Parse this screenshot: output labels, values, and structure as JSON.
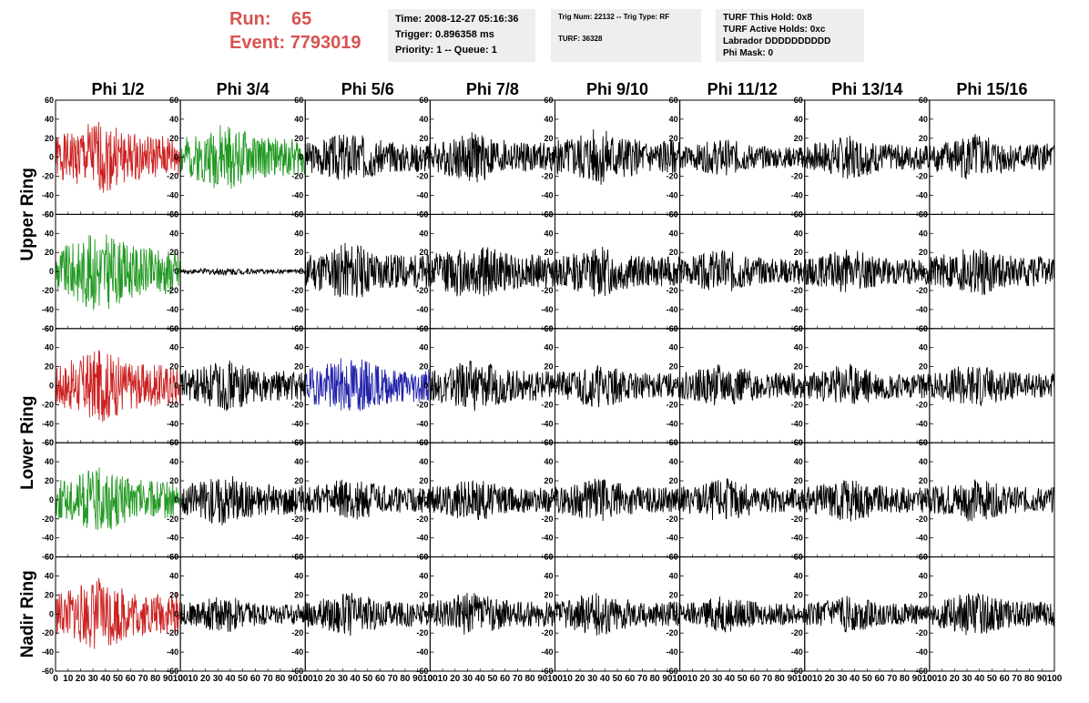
{
  "header": {
    "run_label": "Run:",
    "run_value": "65",
    "event_label": "Event:",
    "event_value": "7793019"
  },
  "info1": {
    "time": "Time: 2008-12-27 05:16:36",
    "trigger": "Trigger: 0.896358 ms",
    "priority": "Priority: 1 -- Queue: 1"
  },
  "info2": {
    "trig": "Trig Num: 22132 -- Trig Type: RF",
    "turf": "TURF: 36328"
  },
  "info3": {
    "hold": "TURF This Hold: 0x8",
    "active": "TURF Active Holds: 0xc",
    "labrador": "Labrador DDDDDDDDDD",
    "phimask": "Phi Mask: 0"
  },
  "chart_data": {
    "type": "line",
    "columns": [
      "Phi 1/2",
      "Phi 3/4",
      "Phi 5/6",
      "Phi 7/8",
      "Phi 9/10",
      "Phi 11/12",
      "Phi 13/14",
      "Phi 15/16"
    ],
    "rows": [
      "Upper Ring",
      "Lower Ring",
      "Nadir Ring"
    ],
    "xlim": [
      0,
      100
    ],
    "ylim": [
      -60,
      60
    ],
    "x_ticks": [
      0,
      10,
      20,
      30,
      40,
      50,
      60,
      70,
      80,
      90,
      100
    ],
    "y_ticks": [
      -60,
      -40,
      -20,
      0,
      20,
      40,
      60
    ],
    "colors": {
      "red": "#cc2222",
      "green": "#229922",
      "blue": "#2222aa",
      "black": "#000000"
    },
    "panel_colors": [
      [
        "red",
        "green",
        "black",
        "black",
        "black",
        "black",
        "black",
        "black"
      ],
      [
        "green",
        "black",
        "black",
        "black",
        "black",
        "black",
        "black",
        "black"
      ],
      [
        "red",
        "black",
        "blue",
        "black",
        "black",
        "black",
        "black",
        "black"
      ],
      [
        "green",
        "black",
        "black",
        "black",
        "black",
        "black",
        "black",
        "black"
      ],
      [
        "red",
        "black",
        "black",
        "black",
        "black",
        "black",
        "black",
        "black"
      ]
    ],
    "panel_amplitudes": [
      [
        20,
        18,
        14,
        14,
        16,
        10,
        12,
        13
      ],
      [
        22,
        2,
        16,
        16,
        14,
        12,
        12,
        14
      ],
      [
        20,
        14,
        16,
        14,
        12,
        12,
        12,
        12
      ],
      [
        18,
        14,
        12,
        12,
        12,
        12,
        12,
        12
      ],
      [
        20,
        10,
        12,
        12,
        12,
        10,
        10,
        12
      ]
    ]
  }
}
